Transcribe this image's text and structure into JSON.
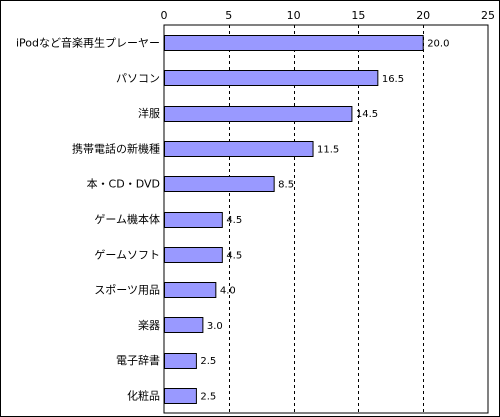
{
  "chart_data": {
    "type": "bar",
    "orientation": "horizontal",
    "title": "",
    "xlabel": "",
    "ylabel": "",
    "xlim": [
      0,
      25
    ],
    "xticks": [
      0,
      5,
      10,
      15,
      20,
      25
    ],
    "tick_labels": [
      "0",
      "5",
      "10",
      "15",
      "20",
      "25"
    ],
    "grid": "vertical dashed",
    "legend": "none",
    "bar_color": "#9999ff",
    "categories": [
      "iPodなど音楽再生プレーヤー",
      "パソコン",
      "洋服",
      "携帯電話の新機種",
      "本・CD・DVD",
      "ゲーム機本体",
      "ゲームソフト",
      "スポーツ用品",
      "楽器",
      "電子辞書",
      "化粧品"
    ],
    "values": [
      20.0,
      16.5,
      14.5,
      11.5,
      8.5,
      4.5,
      4.5,
      4.0,
      3.0,
      2.5,
      2.5
    ],
    "value_labels": [
      "20.0",
      "16.5",
      "14.5",
      "11.5",
      "8.5",
      "4.5",
      "4.5",
      "4.0",
      "3.0",
      "2.5",
      "2.5"
    ]
  }
}
